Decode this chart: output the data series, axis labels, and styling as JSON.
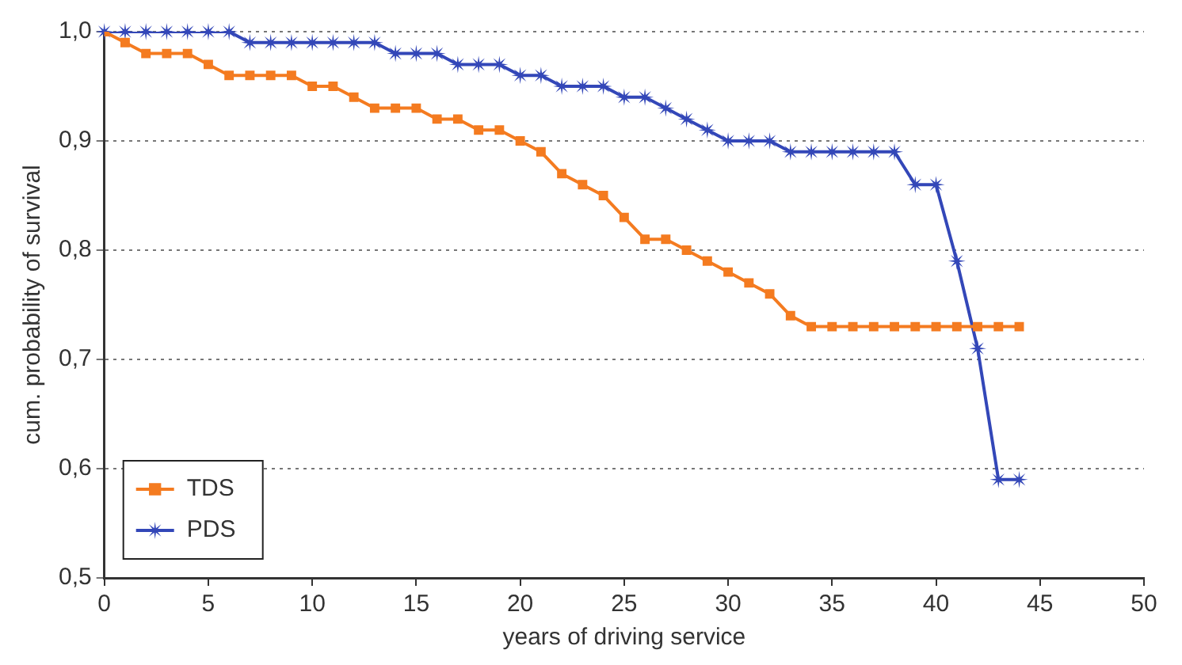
{
  "chart_data": {
    "type": "line",
    "xlabel": "years of driving service",
    "ylabel": "cum. probability of survival",
    "x": [
      0,
      1,
      2,
      3,
      4,
      5,
      6,
      7,
      8,
      9,
      10,
      11,
      12,
      13,
      14,
      15,
      16,
      17,
      18,
      19,
      20,
      21,
      22,
      23,
      24,
      25,
      26,
      27,
      28,
      29,
      30,
      31,
      32,
      33,
      34,
      35,
      36,
      37,
      38,
      39,
      40,
      41,
      42,
      43,
      44
    ],
    "series": [
      {
        "name": "TDS",
        "color": "#f47b20",
        "marker": "square",
        "values": [
          1.0,
          0.99,
          0.98,
          0.98,
          0.98,
          0.97,
          0.96,
          0.96,
          0.96,
          0.96,
          0.95,
          0.95,
          0.94,
          0.93,
          0.93,
          0.93,
          0.92,
          0.92,
          0.91,
          0.91,
          0.9,
          0.89,
          0.87,
          0.86,
          0.85,
          0.83,
          0.81,
          0.81,
          0.8,
          0.79,
          0.78,
          0.77,
          0.76,
          0.74,
          0.73,
          0.73,
          0.73,
          0.73,
          0.73,
          0.73,
          0.73,
          0.73,
          0.73,
          0.73,
          0.73
        ]
      },
      {
        "name": "PDS",
        "color": "#3347b8",
        "marker": "star",
        "values": [
          1.0,
          1.0,
          1.0,
          1.0,
          1.0,
          1.0,
          1.0,
          0.99,
          0.99,
          0.99,
          0.99,
          0.99,
          0.99,
          0.99,
          0.98,
          0.98,
          0.98,
          0.97,
          0.97,
          0.97,
          0.96,
          0.96,
          0.95,
          0.95,
          0.95,
          0.94,
          0.94,
          0.93,
          0.92,
          0.91,
          0.9,
          0.9,
          0.9,
          0.89,
          0.89,
          0.89,
          0.89,
          0.89,
          0.89,
          0.86,
          0.86,
          0.79,
          0.71,
          0.59,
          0.59
        ]
      }
    ],
    "xlim": [
      0,
      50
    ],
    "xticks": [
      0,
      5,
      10,
      15,
      20,
      25,
      30,
      35,
      40,
      45,
      50
    ],
    "ylim": [
      0.5,
      1.0
    ],
    "yticks": [
      {
        "value": 0.5,
        "label": "0,5"
      },
      {
        "value": 0.6,
        "label": "0,6"
      },
      {
        "value": 0.7,
        "label": "0,7"
      },
      {
        "value": 0.8,
        "label": "0,8"
      },
      {
        "value": 0.9,
        "label": "0,9"
      },
      {
        "value": 1.0,
        "label": "1,0"
      }
    ],
    "grid": "y",
    "legend": "bottom left",
    "line_style": "solid"
  }
}
